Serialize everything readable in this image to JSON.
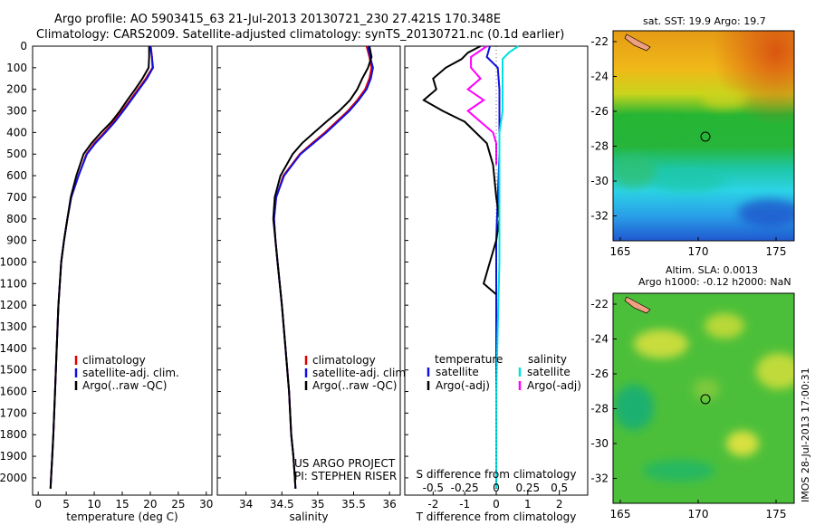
{
  "figure": {
    "title_line1": "Argo profile: AO 5903415_63 21-Jul-2013 20130721_230 27.421S 170.348E",
    "title_line2": "Climatology: CARS2009. Satellite-adjusted climatology: synTS_20130721.nc (0.1d earlier)",
    "credit": "US ARGO PROJECT",
    "pi": "PI: STEPHEN RISER",
    "timestamp": "IMOS 28-Jul-2013 17:00:31"
  },
  "colors": {
    "climatology": "#e00000",
    "satellite": "#1010e0",
    "argo": "#000000",
    "satellite_salinity": "#00e0e0",
    "argo_salinity": "#ff00ff"
  },
  "chart_data": [
    {
      "id": "temperature",
      "type": "line",
      "xlabel": "temperature (deg C)",
      "ylabel": "",
      "xlim": [
        -1,
        31
      ],
      "ylim": [
        2080,
        0
      ],
      "xticks": [
        "0",
        "5",
        "10",
        "15",
        "20",
        "25",
        "30"
      ],
      "xtick_values": [
        0,
        5,
        10,
        15,
        20,
        25,
        30
      ],
      "yticks": [
        "0",
        "100",
        "200",
        "300",
        "400",
        "500",
        "600",
        "700",
        "800",
        "900",
        "1000",
        "1100",
        "1200",
        "1300",
        "1400",
        "1500",
        "1600",
        "1700",
        "1800",
        "1900",
        "2000"
      ],
      "ytick_values": [
        0,
        100,
        200,
        300,
        400,
        500,
        600,
        700,
        800,
        900,
        1000,
        1100,
        1200,
        1300,
        1400,
        1500,
        1600,
        1700,
        1800,
        1900,
        2000
      ],
      "legend": [
        "climatology",
        "satellite-adj. clim.",
        "Argo(..raw -QC)"
      ],
      "series": [
        {
          "name": "climatology",
          "color_key": "climatology",
          "x": [
            20.1,
            20.3,
            20.4,
            19.2,
            17.8,
            16.4,
            15.0,
            13.5,
            11.8,
            10.0,
            8.6,
            7.2,
            5.9,
            5.2,
            4.6,
            4.1,
            3.6,
            3.3,
            3.0,
            2.7,
            2.5,
            2.3,
            2.2
          ],
          "y": [
            0,
            50,
            100,
            150,
            200,
            250,
            300,
            350,
            400,
            450,
            500,
            600,
            700,
            800,
            900,
            1000,
            1200,
            1400,
            1600,
            1800,
            1900,
            2000,
            2050
          ]
        },
        {
          "name": "satellite-adj. clim.",
          "color_key": "satellite",
          "x": [
            20.0,
            20.3,
            20.5,
            19.4,
            18.0,
            16.6,
            15.2,
            13.7,
            12.0,
            10.2,
            8.7,
            7.2,
            5.9,
            5.2,
            4.6,
            4.1,
            3.6,
            3.3,
            3.0,
            2.7,
            2.5,
            2.3,
            2.2
          ],
          "y": [
            0,
            50,
            100,
            150,
            200,
            250,
            300,
            350,
            400,
            450,
            500,
            600,
            700,
            800,
            900,
            1000,
            1200,
            1400,
            1600,
            1800,
            1900,
            2000,
            2050
          ]
        },
        {
          "name": "Argo(..raw -QC)",
          "color_key": "argo",
          "x": [
            19.8,
            19.8,
            19.7,
            18.6,
            17.3,
            15.9,
            14.6,
            13.1,
            11.2,
            9.5,
            8.1,
            6.8,
            5.8,
            5.2,
            4.6,
            4.1,
            3.6,
            3.3,
            3.0,
            2.7,
            2.5,
            2.3,
            2.2
          ],
          "y": [
            0,
            50,
            100,
            150,
            200,
            250,
            300,
            350,
            400,
            450,
            500,
            600,
            700,
            800,
            900,
            1000,
            1200,
            1400,
            1600,
            1800,
            1900,
            2000,
            2050
          ]
        }
      ]
    },
    {
      "id": "salinity",
      "type": "line",
      "xlabel": "salinity",
      "ylabel": "",
      "xlim": [
        33.6,
        36.15
      ],
      "ylim": [
        2080,
        0
      ],
      "xticks": [
        "34",
        "34.5",
        "35",
        "35.5",
        "36"
      ],
      "xtick_values": [
        34,
        34.5,
        35,
        35.5,
        36
      ],
      "legend": [
        "climatology",
        "satellite-adj. clim.",
        "Argo(..raw -QC)"
      ],
      "series": [
        {
          "name": "climatology",
          "color_key": "climatology",
          "x": [
            35.68,
            35.72,
            35.75,
            35.72,
            35.66,
            35.55,
            35.42,
            35.26,
            35.1,
            34.92,
            34.75,
            34.52,
            34.42,
            34.39,
            34.41,
            34.44,
            34.5,
            34.55,
            34.6,
            34.63,
            34.66,
            34.68,
            34.69
          ],
          "y": [
            0,
            50,
            100,
            150,
            200,
            250,
            300,
            350,
            400,
            450,
            500,
            600,
            700,
            800,
            900,
            1000,
            1200,
            1400,
            1600,
            1800,
            1900,
            2000,
            2050
          ]
        },
        {
          "name": "satellite-adj. clim.",
          "color_key": "satellite",
          "x": [
            35.7,
            35.73,
            35.77,
            35.74,
            35.68,
            35.57,
            35.44,
            35.28,
            35.12,
            34.94,
            34.76,
            34.53,
            34.42,
            34.39,
            34.41,
            34.44,
            34.5,
            34.55,
            34.6,
            34.63,
            34.66,
            34.68,
            34.69
          ],
          "y": [
            0,
            50,
            100,
            150,
            200,
            250,
            300,
            350,
            400,
            450,
            500,
            600,
            700,
            800,
            900,
            1000,
            1200,
            1400,
            1600,
            1800,
            1900,
            2000,
            2050
          ]
        },
        {
          "name": "Argo(..raw -QC)",
          "color_key": "argo",
          "x": [
            35.72,
            35.75,
            35.7,
            35.62,
            35.55,
            35.45,
            35.3,
            35.12,
            34.95,
            34.78,
            34.65,
            34.48,
            34.4,
            34.38,
            34.41,
            34.44,
            34.5,
            34.55,
            34.6,
            34.63,
            34.66,
            34.68,
            34.69
          ],
          "y": [
            0,
            50,
            100,
            150,
            200,
            250,
            300,
            350,
            400,
            450,
            500,
            600,
            700,
            800,
            900,
            1000,
            1200,
            1400,
            1600,
            1800,
            1900,
            2000,
            2050
          ]
        }
      ]
    },
    {
      "id": "difference",
      "type": "line",
      "xlabel": "T difference from climatology",
      "x2label": "S difference from climatology",
      "xlim": [
        -2.9,
        2.9
      ],
      "ylim": [
        2080,
        0
      ],
      "xticks": [
        "-2",
        "-1",
        "0",
        "1",
        "2"
      ],
      "xtick_values": [
        -2,
        -1,
        0,
        1,
        2
      ],
      "x2ticks": [
        "-0.5",
        "-0.25",
        "0",
        "0.25",
        "0.5"
      ],
      "x2tick_positions": [
        -2,
        -1,
        0,
        1,
        2
      ],
      "legend_left_title": "temperature",
      "legend_right_title": "salinity",
      "legend_left": [
        "satellite",
        "Argo(-adj)"
      ],
      "legend_right": [
        "satellite",
        "Argo(-adj)"
      ],
      "series": [
        {
          "name": "temperature satellite",
          "color_key": "satellite",
          "x": [
            -0.2,
            -0.3,
            0.05,
            0.1,
            0.1,
            0.1,
            0.1,
            0.05,
            0,
            0,
            0,
            0,
            0
          ],
          "y": [
            0,
            50,
            100,
            200,
            300,
            400,
            500,
            700,
            900,
            1200,
            1500,
            1800,
            2050
          ]
        },
        {
          "name": "temperature Argo(-adj)",
          "color_key": "argo",
          "x": [
            -0.5,
            -0.9,
            -1.1,
            -1.6,
            -2.0,
            -1.9,
            -2.3,
            -1.7,
            -1.0,
            -0.3,
            -0.1,
            0,
            0.1,
            0,
            -0.2,
            -0.4,
            0
          ],
          "y": [
            0,
            30,
            60,
            100,
            150,
            200,
            250,
            300,
            350,
            450,
            550,
            700,
            800,
            900,
            1000,
            1100,
            1150
          ]
        },
        {
          "name": "salinity satellite",
          "color_key": "satellite_salinity",
          "x": [
            0.7,
            0.4,
            0.2,
            0.2,
            0.2,
            0.2,
            0.1,
            0.1,
            0.1,
            0.1,
            0.05,
            0,
            0
          ],
          "y": [
            0,
            30,
            60,
            100,
            200,
            300,
            400,
            600,
            800,
            1000,
            1300,
            1600,
            2050
          ]
        },
        {
          "name": "salinity Argo(-adj)",
          "color_key": "argo_salinity",
          "x": [
            -0.3,
            -0.8,
            -0.8,
            -0.5,
            -0.9,
            -0.4,
            -0.9,
            -0.5,
            -0.1,
            0,
            0,
            0
          ],
          "y": [
            0,
            50,
            100,
            150,
            200,
            250,
            300,
            350,
            400,
            450,
            500,
            550
          ]
        }
      ]
    },
    {
      "id": "sst-map",
      "type": "heatmap",
      "title": "sat. SST: 19.9  Argo: 19.7",
      "xticks": [
        "165",
        "170",
        "175"
      ],
      "yticks": [
        "-22",
        "-24",
        "-26",
        "-28",
        "-30",
        "-32"
      ],
      "marker": "circle at 170.348E 27.421S"
    },
    {
      "id": "sla-map",
      "type": "heatmap",
      "title_line1": "Altim. SLA: 0.0013",
      "title_line2": "Argo h1000: -0.12  h2000: NaN",
      "xticks": [
        "165",
        "170",
        "175"
      ],
      "yticks": [
        "-22",
        "-24",
        "-26",
        "-28",
        "-30",
        "-32"
      ],
      "marker": "circle at 170.348E 27.421S"
    }
  ]
}
